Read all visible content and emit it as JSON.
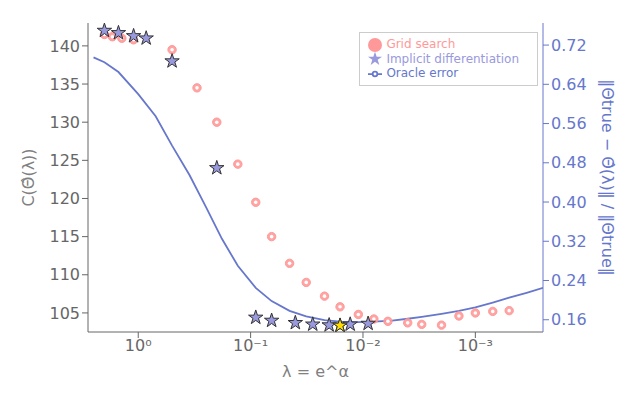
{
  "chart_data": {
    "type": "scatter",
    "xlabel": "λ = e^α",
    "ylabel": "C(Θ̂(λ))",
    "y2label": "‖Θtrue − Θ̂(λ)‖ / ‖Θtrue‖",
    "log": "x",
    "grid": false,
    "legend": "upper right",
    "xlim": [
      2.8,
      0.00025
    ],
    "xticks": [
      {
        "value": 1.0,
        "label": "10⁰"
      },
      {
        "value": 0.1,
        "label": "10⁻¹"
      },
      {
        "value": 0.01,
        "label": "10⁻²"
      },
      {
        "value": 0.001,
        "label": "10⁻³"
      }
    ],
    "ylim": [
      102.5,
      143
    ],
    "yticks": [
      105,
      110,
      115,
      120,
      125,
      130,
      135,
      140
    ],
    "y2lim": [
      0.135,
      0.765
    ],
    "y2ticks": [
      0.16,
      0.24,
      0.32,
      {
        "value": 0.4,
        "label": "0.40"
      },
      0.48,
      0.56,
      0.64,
      0.72
    ],
    "series": [
      {
        "name": "Grid search",
        "type": "scatter",
        "marker": "donut",
        "color": "#ff9999",
        "x": [
          2.0,
          1.7,
          1.4,
          1.1,
          0.5,
          0.3,
          0.2,
          0.13,
          0.09,
          0.065,
          0.045,
          0.032,
          0.022,
          0.016,
          0.011,
          0.008,
          0.006,
          0.004,
          0.003,
          0.002,
          0.0014,
          0.001,
          0.0007,
          0.0005
        ],
        "values": [
          141.5,
          141.2,
          141.0,
          140.8,
          139.5,
          134.5,
          130.0,
          124.5,
          119.5,
          115.0,
          111.5,
          109.0,
          107.2,
          105.8,
          104.8,
          104.2,
          103.9,
          103.7,
          103.5,
          103.4,
          104.6,
          105.0,
          105.2,
          105.3
        ]
      },
      {
        "name": "Implicit differentiation",
        "type": "scatter",
        "marker": "star",
        "color": "#9999dd",
        "x": [
          2.0,
          1.5,
          1.1,
          0.85,
          0.5,
          0.2,
          0.09,
          0.065,
          0.04,
          0.028,
          0.02,
          0.016,
          0.013,
          0.009
        ],
        "values": [
          142.0,
          141.7,
          141.3,
          141.0,
          138.0,
          124.0,
          104.4,
          104.0,
          103.7,
          103.5,
          103.4,
          103.35,
          103.5,
          103.6
        ]
      },
      {
        "type": "scatter",
        "marker": "star",
        "color": "#ffdd00",
        "x": [
          0.016
        ],
        "values": [
          103.35
        ]
      },
      {
        "name": "Oracle error",
        "type": "line",
        "color": "#6677cc",
        "axis": "y2",
        "x": [
          2.5,
          2.0,
          1.5,
          1.0,
          0.7,
          0.5,
          0.35,
          0.25,
          0.18,
          0.13,
          0.09,
          0.065,
          0.045,
          0.032,
          0.022,
          0.016,
          0.011,
          0.008,
          0.0055,
          0.004,
          0.003,
          0.002,
          0.0014,
          0.001,
          0.0007,
          0.0005,
          0.00035,
          0.00025
        ],
        "values": [
          0.695,
          0.685,
          0.665,
          0.62,
          0.575,
          0.515,
          0.455,
          0.39,
          0.325,
          0.27,
          0.225,
          0.198,
          0.178,
          0.167,
          0.159,
          0.156,
          0.155,
          0.156,
          0.158,
          0.162,
          0.166,
          0.172,
          0.178,
          0.185,
          0.195,
          0.205,
          0.215,
          0.225
        ]
      }
    ]
  }
}
